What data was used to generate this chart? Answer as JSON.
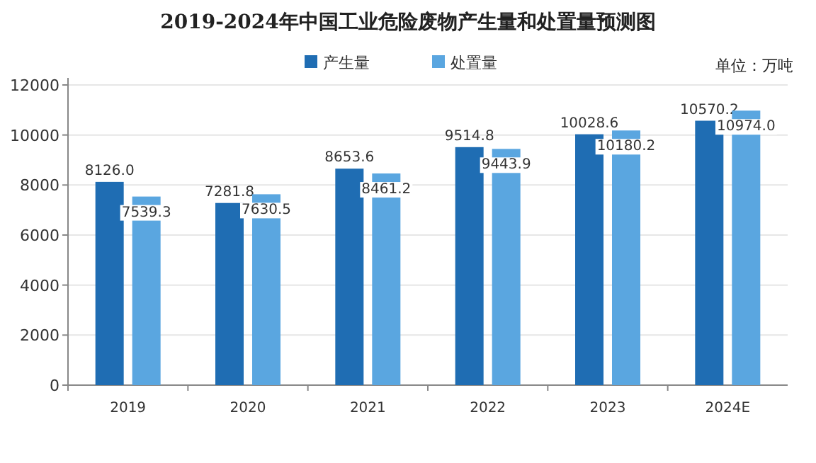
{
  "chart_data": {
    "type": "bar",
    "title": "2019-2024年中国工业危险废物产生量和处置量预测图",
    "annotations": [
      "单位：万吨"
    ],
    "categories": [
      "2019",
      "2020",
      "2021",
      "2022",
      "2023",
      "2024E"
    ],
    "series": [
      {
        "name": "产生量",
        "color": "#1f6db3",
        "values": [
          8126.0,
          7281.8,
          8653.6,
          9514.8,
          10028.6,
          10570.2
        ],
        "value_labels": [
          "8126.0",
          "7281.8",
          "8653.6",
          "9514.8",
          "10028.6",
          "10570.2"
        ]
      },
      {
        "name": "处置量",
        "color": "#5aa6e0",
        "values": [
          7539.3,
          7630.5,
          8461.2,
          9443.9,
          10180.2,
          10974.0
        ],
        "value_labels": [
          "7539.3",
          "7630.5",
          "8461.2",
          "9443.9",
          "10180.2",
          "10974.0"
        ]
      }
    ],
    "ylim": [
      0,
      12000
    ],
    "yticks": [
      0,
      2000,
      4000,
      6000,
      8000,
      10000,
      12000
    ],
    "grid": "y",
    "legend": "top"
  }
}
